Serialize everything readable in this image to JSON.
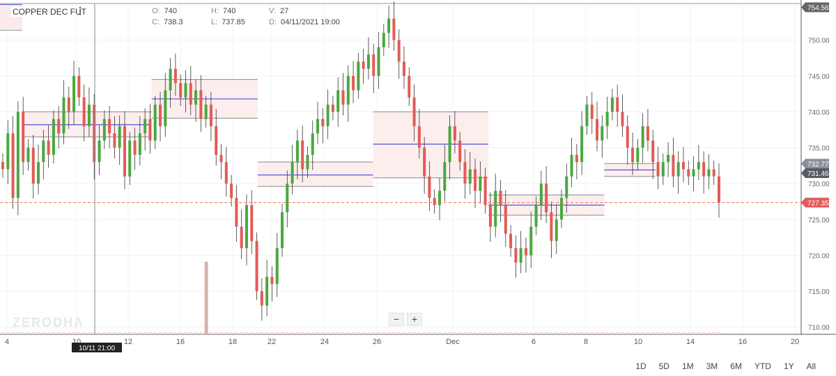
{
  "header": {
    "symbol": "COPPER DEC FUT",
    "menu_icon": "kebab-icon",
    "ohlc": {
      "o_label": "O:",
      "o": "740",
      "h_label": "H:",
      "h": "740",
      "v_label": "V:",
      "v": "27",
      "c_label": "C:",
      "c": "738.3",
      "l_label": "L:",
      "l": "737.85",
      "d_label": "D:",
      "d": "04/11/2021 19:00"
    }
  },
  "watermark": "ZERODHA",
  "zoom": {
    "minus": "−",
    "plus": "+"
  },
  "ranges": [
    "1D",
    "5D",
    "1M",
    "3M",
    "6M",
    "YTD",
    "1Y",
    "All"
  ],
  "crosshair_label": "10/11 21:00",
  "chart_data": {
    "type": "candlestick",
    "y_axis": {
      "min": 709,
      "max": 755,
      "ticks": [
        710,
        715,
        720,
        725,
        730,
        735,
        740,
        745,
        750
      ]
    },
    "x_axis": {
      "ticks": [
        "4",
        "10",
        "12",
        "16",
        "18",
        "22",
        "24",
        "26",
        "Dec",
        "6",
        "8",
        "10",
        "14",
        "16",
        "20"
      ]
    },
    "price_labels": [
      {
        "value": 754.56,
        "text": "754.56",
        "color": "#666666"
      },
      {
        "value": 732.77,
        "text": "732.77",
        "color": "#8a8f99"
      },
      {
        "value": 731.46,
        "text": "731.46",
        "color": "#555b66"
      },
      {
        "value": 727.35,
        "text": "727.35",
        "color": "#e05b5b"
      }
    ],
    "last_price": 727.35,
    "colors": {
      "up": "#49a83f",
      "down": "#e25b57",
      "zone_fill": "#fdeeee",
      "zone_mid": "#5050dd",
      "zone_edge": "#888888",
      "last_line": "#ee7755"
    },
    "zones": [
      {
        "x0": 0.0,
        "x1": 0.185,
        "top": 740.0,
        "bottom": 736.5,
        "mid": 738.2
      },
      {
        "x0": 0.185,
        "x1": 0.337,
        "top": 744.5,
        "bottom": 739.1,
        "mid": 741.8
      },
      {
        "x0": 0.337,
        "x1": 0.502,
        "top": 733.0,
        "bottom": 729.6,
        "mid": 731.2
      },
      {
        "x0": 0.502,
        "x1": 0.667,
        "top": 740.0,
        "bottom": 730.8,
        "mid": 735.5
      },
      {
        "x0": 0.667,
        "x1": 0.833,
        "top": 728.4,
        "bottom": 725.6,
        "mid": 727.0
      },
      {
        "x0": 0.833,
        "x1": 0.906,
        "top": 732.8,
        "bottom": 731.0,
        "mid": 731.9
      }
    ],
    "closes": [
      732,
      737,
      728,
      740,
      733,
      735,
      730,
      733,
      736,
      734,
      739,
      737,
      742,
      740,
      745,
      742,
      738,
      741,
      733,
      736,
      739,
      737,
      735,
      738,
      731,
      736,
      734,
      737,
      739,
      736,
      741,
      738,
      743,
      746,
      744,
      742,
      744,
      741,
      743,
      739,
      741,
      738,
      734,
      733,
      730,
      728,
      724,
      721,
      727,
      722,
      715,
      713,
      717,
      716,
      721,
      726,
      730,
      733,
      736,
      732,
      734,
      737,
      739,
      738,
      741,
      740,
      743,
      741,
      745,
      743,
      747,
      746,
      748,
      745,
      749,
      751,
      753,
      750,
      747,
      745,
      742,
      738,
      735,
      731,
      728,
      727,
      729,
      733,
      738,
      736,
      733,
      730,
      732,
      729,
      731,
      727,
      724,
      729,
      727,
      723,
      721,
      719,
      721,
      720,
      724,
      727,
      730,
      726,
      722,
      725,
      728,
      731,
      734,
      733,
      738,
      741,
      739,
      736,
      738,
      740,
      742,
      740,
      738,
      735,
      733,
      735,
      738,
      736,
      733,
      731,
      733,
      734,
      731,
      733,
      732,
      731,
      732,
      733,
      731,
      732,
      731,
      727.35
    ],
    "volume_spike": {
      "index": 40,
      "value": 0.22
    }
  }
}
